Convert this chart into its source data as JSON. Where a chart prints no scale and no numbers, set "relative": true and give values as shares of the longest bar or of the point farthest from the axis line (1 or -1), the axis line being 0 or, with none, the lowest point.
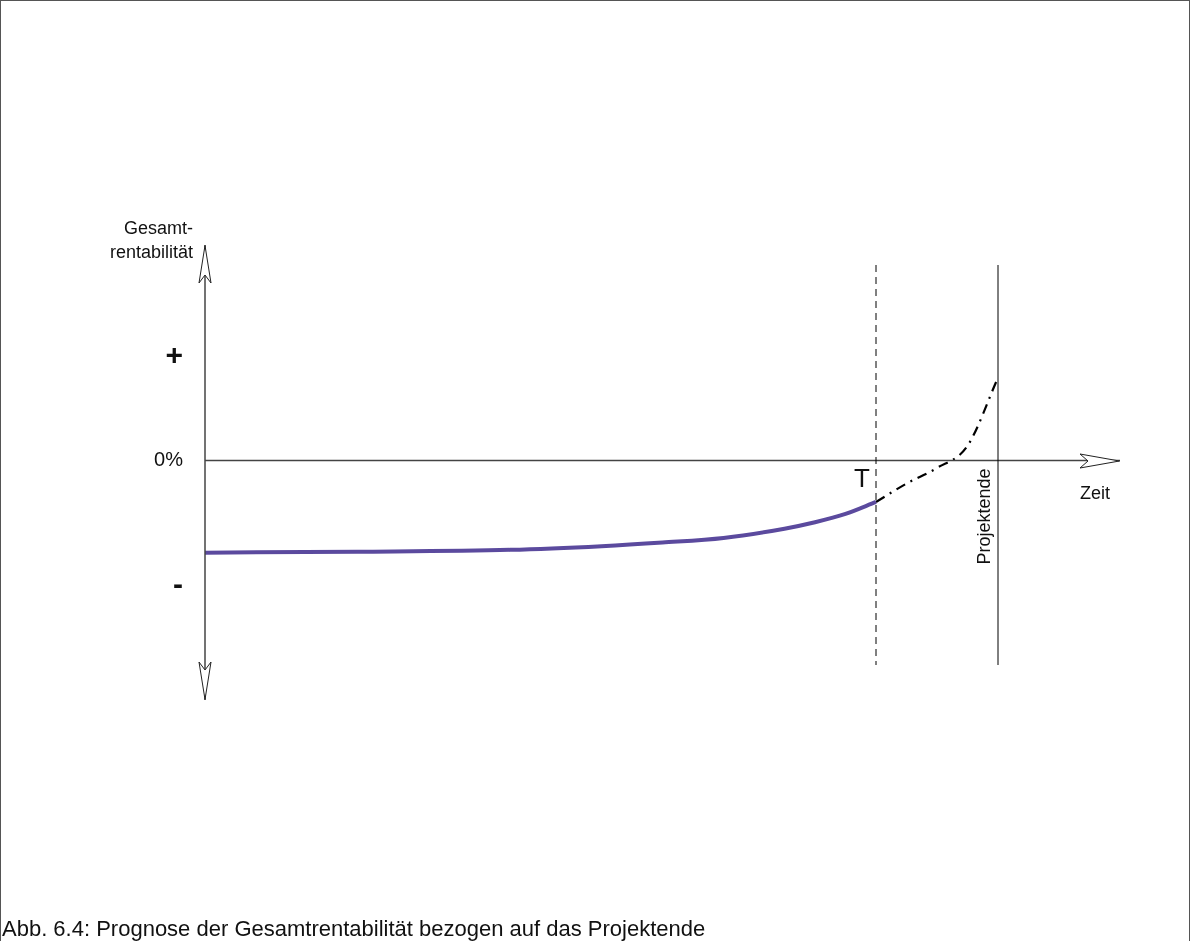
{
  "chart_data": {
    "type": "line",
    "title": "Abb. 6.4: Prognose der Gesamtrentabilität bezogen auf das Projektende",
    "xlabel": "Zeit",
    "relative": true,
    "categories": [
      null,
      null,
      null,
      null,
      null,
      null,
      null,
      null,
      null,
      null,
      null,
      null,
      null,
      null,
      null,
      null,
      null,
      null,
      null,
      null,
      null,
      null,
      "T",
      null,
      null,
      null,
      "Projektende",
      null,
      null,
      null,
      null
    ],
    "series": [
      {
        "color": "#5b4a9e",
        "line_style": "solid",
        "values": [
          -1,
          null,
          null,
          null,
          null,
          -0.99,
          null,
          null,
          null,
          null,
          -0.97,
          null,
          null,
          -0.93,
          null,
          -0.89,
          null,
          -0.84,
          null,
          -0.74,
          -0.67,
          -0.58,
          -0.45,
          null,
          null,
          null,
          null,
          null,
          null,
          null,
          null
        ]
      },
      {
        "color": "#000000",
        "line_style": "dashed",
        "values": [
          null,
          null,
          null,
          null,
          null,
          null,
          null,
          null,
          null,
          null,
          null,
          null,
          null,
          null,
          null,
          null,
          null,
          null,
          null,
          null,
          null,
          null,
          -0.45,
          -0.25,
          -0.08,
          0.16,
          0.9,
          null,
          null,
          null,
          null
        ]
      }
    ],
    "ref_lines": [
      {
        "axis": "x",
        "value": "T",
        "line_style": "dashed",
        "color": "#000000"
      },
      {
        "axis": "x",
        "value": "Projektende",
        "line_style": "solid",
        "color": "#000000"
      }
    ],
    "annotations": [
      "Gesamt-rentabilität",
      "+",
      "0%",
      "-"
    ],
    "marker": "none",
    "grid": false,
    "legend": false
  }
}
